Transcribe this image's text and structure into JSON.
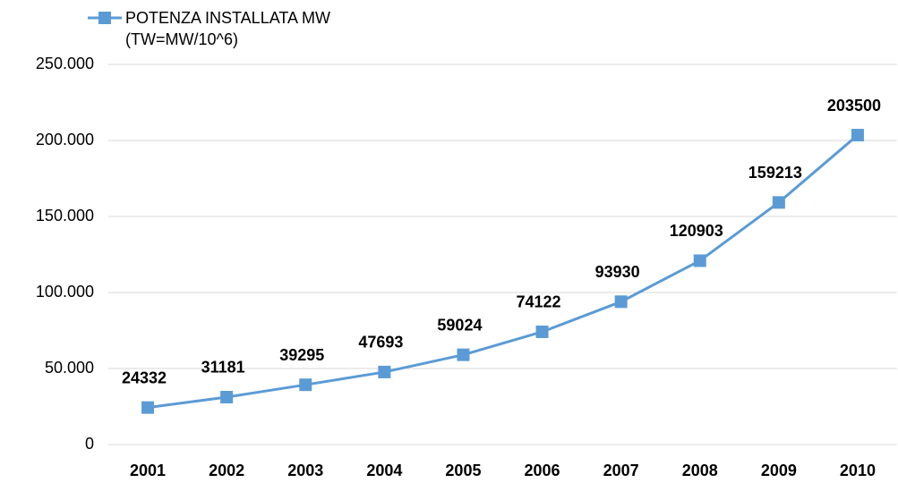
{
  "chart_data": {
    "type": "line",
    "categories": [
      "2001",
      "2002",
      "2003",
      "2004",
      "2005",
      "2006",
      "2007",
      "2008",
      "2009",
      "2010"
    ],
    "series": [
      {
        "name": "POTENZA INSTALLATA MW (TW=MW/10^6)",
        "color": "#5b9bd5",
        "values": [
          24332,
          31181,
          39295,
          47693,
          59024,
          74122,
          93930,
          120903,
          159213,
          203500
        ]
      }
    ],
    "ylim": [
      0,
      250000
    ],
    "yticks": [
      0,
      {
        "value": 50000,
        "label": "50.000"
      },
      {
        "value": 100000,
        "label": "100.000"
      },
      {
        "value": 150000,
        "label": "150.000"
      },
      {
        "value": 200000,
        "label": "200.000"
      },
      {
        "value": 250000,
        "label": "250.000"
      }
    ],
    "grid": true,
    "legend": "top-left"
  }
}
